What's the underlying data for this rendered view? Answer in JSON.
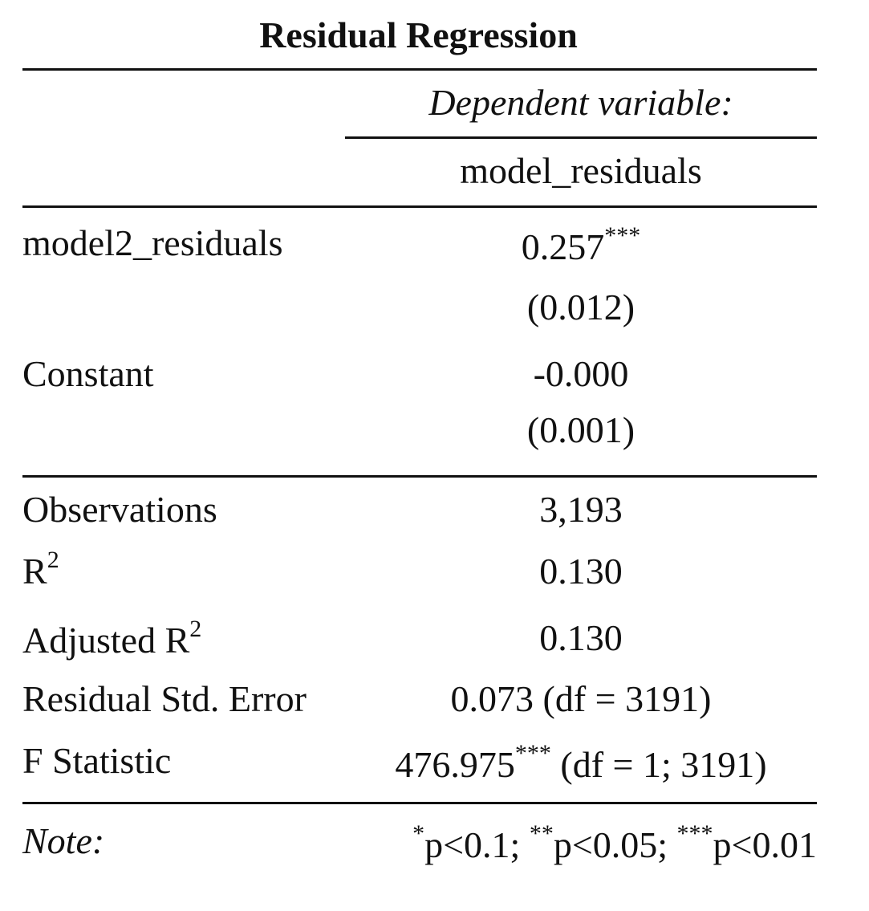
{
  "title": "Residual Regression",
  "header": {
    "dep_var_label": "Dependent variable:",
    "dep_var_name": "model_residuals"
  },
  "coefficients": [
    {
      "name": "model2_residuals",
      "estimate": "0.257",
      "stars": "***",
      "se": "(0.012)"
    },
    {
      "name": "Constant",
      "estimate": "-0.000",
      "stars": "",
      "se": "(0.001)"
    }
  ],
  "stats": {
    "observations": {
      "label": "Observations",
      "value": "3,193"
    },
    "r2": {
      "label": "R",
      "sup": "2",
      "value": "0.130"
    },
    "adj_r2": {
      "label": "Adjusted R",
      "sup": "2",
      "value": "0.130"
    },
    "rse": {
      "label": "Residual Std. Error",
      "value": "0.073 (df = 3191)"
    },
    "fstat": {
      "label": "F Statistic",
      "value": "476.975",
      "stars": "***",
      "suffix": " (df = 1; 3191)"
    }
  },
  "note": {
    "label": "Note:",
    "s1": "*",
    "t1": "p<0.1; ",
    "s2": "**",
    "t2": "p<0.05; ",
    "s3": "***",
    "t3": "p<0.01"
  }
}
